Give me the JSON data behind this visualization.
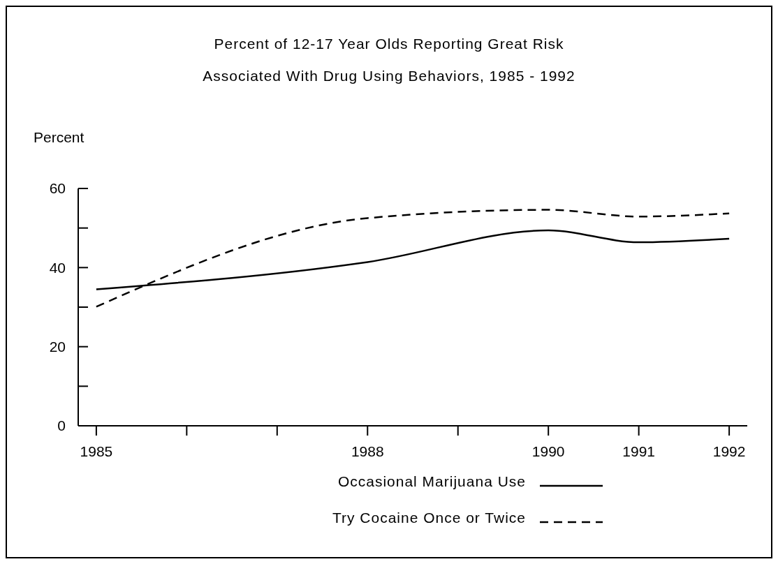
{
  "chart_data": {
    "type": "line",
    "title": "Percent of 12-17 Year Olds Reporting Great Risk",
    "subtitle": "Associated With Drug Using Behaviors, 1985 - 1992",
    "ylabel": "Percent",
    "x": [
      1985,
      1988,
      1990,
      1991,
      1992
    ],
    "xlim": [
      1984.8,
      1992.2
    ],
    "xticks": [
      1985,
      {
        "value": 1986,
        "label": null
      },
      {
        "value": 1987,
        "label": null
      },
      1988,
      {
        "value": 1989,
        "label": null
      },
      1990,
      1991,
      1992
    ],
    "ylim": [
      0,
      60
    ],
    "yticks": [
      0,
      {
        "value": 10,
        "label": null
      },
      20,
      {
        "value": 30,
        "label": null
      },
      40,
      {
        "value": 50,
        "label": null
      },
      60
    ],
    "series": [
      {
        "name": "Occasional Marijuana Use",
        "color": "#000000",
        "line_style": "solid",
        "values": [
          34.5,
          41.4,
          49.4,
          46.4,
          47.3
        ]
      },
      {
        "name": "Try Cocaine Once or Twice",
        "color": "#000000",
        "line_style": "dashed",
        "values": [
          30.1,
          52.5,
          54.6,
          52.9,
          53.7
        ]
      }
    ],
    "legend": "bottom",
    "grid": false,
    "marker": "none"
  }
}
